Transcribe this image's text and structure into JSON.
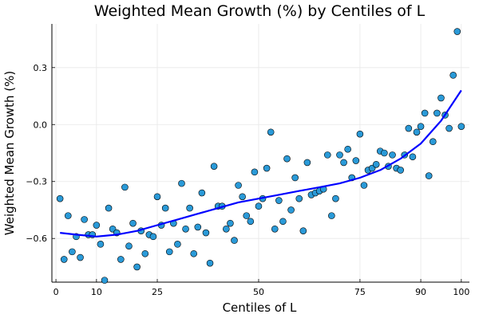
{
  "chart_data": {
    "type": "scatter",
    "title": "Weighted Mean Growth (%) by Centiles of L",
    "xlabel": "Centiles of L",
    "ylabel": "Weighted Mean Growth (%)",
    "xlim": [
      -1,
      102
    ],
    "ylim": [
      -0.83,
      0.53
    ],
    "xticks": [
      0,
      10,
      25,
      50,
      75,
      90,
      100
    ],
    "xtick_labels": [
      "0",
      "10",
      "25",
      "50",
      "75",
      "90",
      "100"
    ],
    "yticks": [
      -0.6,
      -0.3,
      0.0,
      0.3
    ],
    "ytick_labels": [
      "−0.6",
      "−0.3",
      "0.0",
      "0.3"
    ],
    "grid": true,
    "legend": "none",
    "colors": {
      "points": "#2a9ad8",
      "point_edge": "#000000",
      "fit": "#0000ff"
    },
    "series": [
      {
        "kind": "scatter",
        "x": [
          1,
          2,
          3,
          4,
          5,
          6,
          7,
          8,
          9,
          10,
          11,
          12,
          13,
          14,
          15,
          16,
          17,
          18,
          19,
          20,
          21,
          22,
          23,
          24,
          25,
          26,
          27,
          28,
          29,
          30,
          31,
          32,
          33,
          34,
          35,
          36,
          37,
          38,
          39,
          40,
          41,
          42,
          43,
          44,
          45,
          46,
          47,
          48,
          49,
          50,
          51,
          52,
          53,
          54,
          55,
          56,
          57,
          58,
          59,
          60,
          61,
          62,
          63,
          64,
          65,
          66,
          67,
          68,
          69,
          70,
          71,
          72,
          73,
          74,
          75,
          76,
          77,
          78,
          79,
          80,
          81,
          82,
          83,
          84,
          85,
          86,
          87,
          88,
          89,
          90,
          91,
          92,
          93,
          94,
          95,
          96,
          97,
          98,
          99,
          100
        ],
        "y": [
          -0.39,
          -0.71,
          -0.48,
          -0.67,
          -0.59,
          -0.7,
          -0.5,
          -0.58,
          -0.58,
          -0.53,
          -0.63,
          -0.82,
          -0.44,
          -0.55,
          -0.57,
          -0.71,
          -0.33,
          -0.64,
          -0.52,
          -0.75,
          -0.56,
          -0.68,
          -0.58,
          -0.59,
          -0.38,
          -0.53,
          -0.44,
          -0.67,
          -0.52,
          -0.63,
          -0.31,
          -0.55,
          -0.44,
          -0.68,
          -0.54,
          -0.36,
          -0.57,
          -0.73,
          -0.22,
          -0.43,
          -0.43,
          -0.55,
          -0.52,
          -0.61,
          -0.32,
          -0.38,
          -0.48,
          -0.51,
          -0.25,
          -0.43,
          -0.39,
          -0.23,
          -0.04,
          -0.55,
          -0.4,
          -0.51,
          -0.18,
          -0.45,
          -0.28,
          -0.39,
          -0.56,
          -0.2,
          -0.37,
          -0.36,
          -0.35,
          -0.34,
          -0.16,
          -0.48,
          -0.39,
          -0.16,
          -0.2,
          -0.13,
          -0.28,
          -0.19,
          -0.05,
          -0.32,
          -0.24,
          -0.23,
          -0.21,
          -0.14,
          -0.15,
          -0.22,
          -0.16,
          -0.23,
          -0.24,
          -0.16,
          -0.02,
          -0.17,
          -0.04,
          -0.01,
          0.06,
          -0.27,
          -0.09,
          0.06,
          0.14,
          0.05,
          -0.02,
          0.26,
          0.49,
          -0.01
        ]
      },
      {
        "kind": "line",
        "x": [
          1,
          5,
          10,
          15,
          20,
          25,
          30,
          35,
          40,
          45,
          50,
          55,
          60,
          65,
          70,
          75,
          80,
          85,
          90,
          95,
          100
        ],
        "y": [
          -0.57,
          -0.58,
          -0.59,
          -0.58,
          -0.56,
          -0.53,
          -0.5,
          -0.47,
          -0.44,
          -0.41,
          -0.39,
          -0.37,
          -0.35,
          -0.33,
          -0.31,
          -0.28,
          -0.24,
          -0.18,
          -0.1,
          0.02,
          0.18
        ]
      }
    ]
  }
}
